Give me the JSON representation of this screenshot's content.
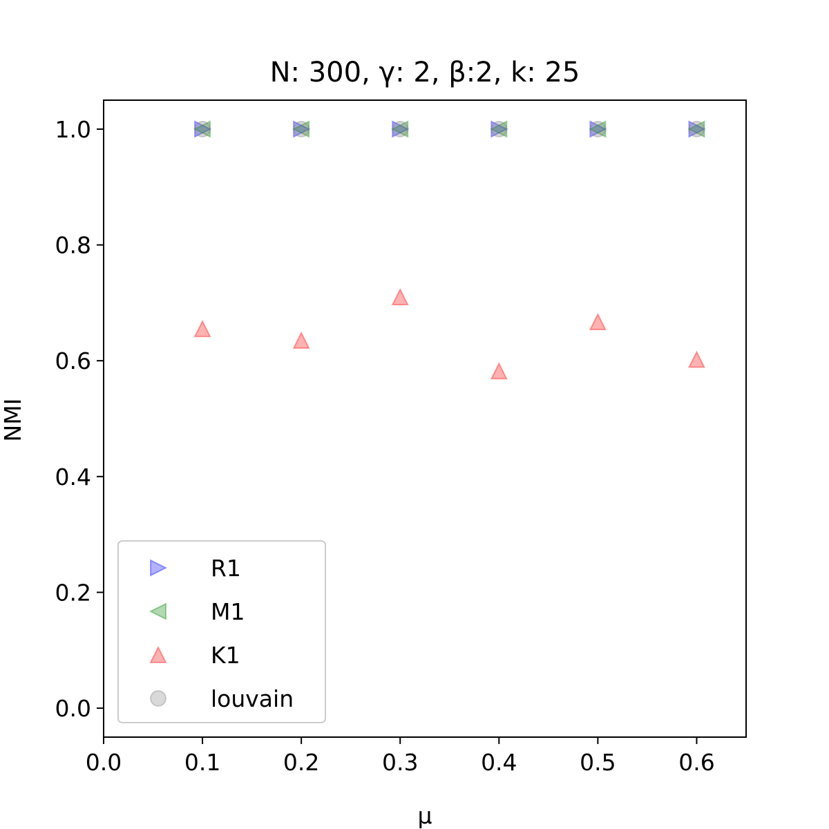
{
  "chart_data": {
    "type": "scatter",
    "title": "N: 300, γ: 2, β:2, k: 25",
    "xlabel": "μ",
    "ylabel": "NMI",
    "xlim": [
      0.0,
      0.65
    ],
    "ylim": [
      -0.05,
      1.05
    ],
    "xticks": [
      "0.0",
      "0.1",
      "0.2",
      "0.3",
      "0.4",
      "0.5",
      "0.6"
    ],
    "yticks": [
      "0.0",
      "0.2",
      "0.4",
      "0.6",
      "0.8",
      "1.0"
    ],
    "grid": false,
    "legend_position": "lower-left",
    "x": [
      0.1,
      0.2,
      0.3,
      0.4,
      0.5,
      0.6
    ],
    "series": [
      {
        "name": "R1",
        "marker": "triangle-right",
        "color": "#0000ff",
        "values": [
          1.0,
          1.0,
          1.0,
          1.0,
          1.0,
          1.0
        ]
      },
      {
        "name": "M1",
        "marker": "triangle-left",
        "color": "#008000",
        "values": [
          1.0,
          1.0,
          1.0,
          1.0,
          1.0,
          1.0
        ]
      },
      {
        "name": "K1",
        "marker": "triangle-up",
        "color": "#ff0000",
        "values": [
          0.655,
          0.635,
          0.71,
          0.582,
          0.667,
          0.602
        ]
      },
      {
        "name": "louvain",
        "marker": "circle",
        "color": "#808080",
        "values": [
          1.0,
          1.0,
          1.0,
          1.0,
          1.0,
          1.0
        ]
      }
    ]
  }
}
